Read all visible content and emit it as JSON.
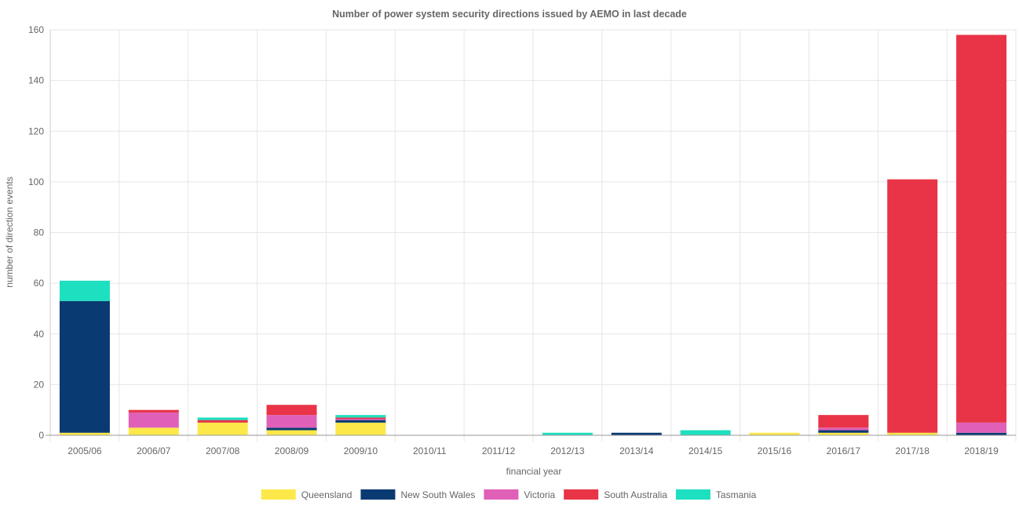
{
  "chart_data": {
    "type": "bar",
    "stacked": true,
    "title": "Number of power system security directions issued by AEMO in last decade",
    "xlabel": "financial year",
    "ylabel": "number of direction events",
    "ylim": [
      0,
      160
    ],
    "yticks": [
      "0",
      "20",
      "40",
      "60",
      "80",
      "100",
      "120",
      "140",
      "160"
    ],
    "grid": true,
    "legend_position": "bottom",
    "categories": [
      "2005/06",
      "2006/07",
      "2007/08",
      "2008/09",
      "2009/10",
      "2010/11",
      "2011/12",
      "2012/13",
      "2013/14",
      "2014/15",
      "2015/16",
      "2016/17",
      "2017/18",
      "2018/19"
    ],
    "series": [
      {
        "name": "Queensland",
        "color": "#fde84a",
        "values": [
          1,
          3,
          5,
          2,
          5,
          0,
          0,
          0,
          0,
          0,
          1,
          1,
          1,
          0
        ]
      },
      {
        "name": "New South Wales",
        "color": "#0a3a72",
        "values": [
          52,
          0,
          0,
          1,
          1,
          0,
          0,
          0,
          1,
          0,
          0,
          1,
          0,
          1
        ]
      },
      {
        "name": "Victoria",
        "color": "#e060b8",
        "values": [
          0,
          6,
          0,
          5,
          0.5,
          0,
          0,
          0,
          0,
          0,
          0,
          1,
          0,
          4
        ]
      },
      {
        "name": "South Australia",
        "color": "#e83446",
        "values": [
          0,
          1,
          1,
          4,
          0.5,
          0,
          0,
          0,
          0,
          0,
          0,
          5,
          100,
          153
        ]
      },
      {
        "name": "Tasmania",
        "color": "#1de0c0",
        "values": [
          8,
          0,
          1,
          0,
          1,
          0,
          0,
          1,
          0,
          2,
          0,
          0,
          0,
          0
        ]
      }
    ]
  }
}
